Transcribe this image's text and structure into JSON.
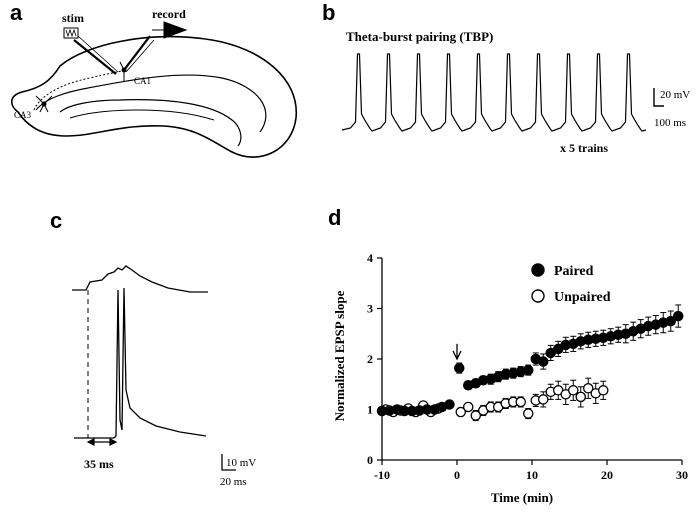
{
  "panel_a": {
    "label": "a",
    "stim_label": "stim",
    "record_label": "record",
    "ca1_label": "CA1",
    "ca3_label": "CA3"
  },
  "panel_b": {
    "label": "b",
    "title": "Theta-burst pairing (TBP)",
    "scale_v": "20 mV",
    "scale_t": "100 ms",
    "trains_note": "x 5 trains",
    "spike_count": 10
  },
  "panel_c": {
    "label": "c",
    "delay_label": "35 ms",
    "scale_v": "10 mV",
    "scale_t": "20 ms"
  },
  "panel_d": {
    "label": "d",
    "chart_data": {
      "type": "scatter",
      "xlabel": "Time (min)",
      "ylabel": "Normalized EPSP slope",
      "xlim": [
        -10,
        30
      ],
      "ylim": [
        0,
        4
      ],
      "xticks": [
        -10,
        0,
        10,
        20,
        30
      ],
      "yticks": [
        0,
        1,
        2,
        3,
        4
      ],
      "legend_position": "top-right",
      "annotation": "arrow at time 0",
      "series": [
        {
          "name": "Paired",
          "marker": "filled-circle",
          "x": [
            -10,
            -9,
            -8,
            -7,
            -6,
            -5,
            -4,
            -3,
            -2,
            -1,
            0.3,
            1.5,
            2.5,
            3.5,
            4.5,
            5.5,
            6.5,
            7.5,
            8.5,
            9.5,
            10.5,
            11.5,
            12.5,
            13.5,
            14.5,
            15.5,
            16.5,
            17.5,
            18.5,
            19.5,
            20.5,
            21.5,
            22.5,
            23.5,
            24.5,
            25.5,
            26.5,
            27.5,
            28.5,
            29.5
          ],
          "y": [
            0.97,
            0.98,
            1.0,
            0.97,
            0.97,
            0.98,
            1.0,
            1.0,
            1.05,
            1.1,
            1.82,
            1.48,
            1.52,
            1.58,
            1.6,
            1.65,
            1.7,
            1.72,
            1.75,
            1.78,
            2.0,
            1.95,
            2.12,
            2.2,
            2.28,
            2.3,
            2.35,
            2.38,
            2.4,
            2.42,
            2.45,
            2.48,
            2.5,
            2.55,
            2.6,
            2.65,
            2.68,
            2.72,
            2.75,
            2.85
          ],
          "err": [
            0.05,
            0.05,
            0.05,
            0.05,
            0.05,
            0.05,
            0.05,
            0.05,
            0.05,
            0.05,
            0.1,
            0.08,
            0.08,
            0.08,
            0.1,
            0.1,
            0.1,
            0.1,
            0.1,
            0.1,
            0.12,
            0.15,
            0.15,
            0.15,
            0.15,
            0.15,
            0.15,
            0.15,
            0.15,
            0.15,
            0.15,
            0.15,
            0.18,
            0.18,
            0.18,
            0.18,
            0.18,
            0.2,
            0.2,
            0.22
          ]
        },
        {
          "name": "Unpaired",
          "marker": "open-circle",
          "x": [
            -9.5,
            -8.5,
            -7.5,
            -6.5,
            -5.5,
            -4.5,
            -3.5,
            -2.5,
            0.5,
            1.5,
            2.5,
            3.5,
            4.5,
            5.5,
            6.5,
            7.5,
            8.5,
            9.5,
            10.5,
            11.5,
            12.5,
            13.5,
            14.5,
            15.5,
            16.5,
            17.5,
            18.5,
            19.5
          ],
          "y": [
            1.0,
            0.95,
            0.98,
            1.02,
            0.95,
            1.08,
            0.95,
            1.02,
            0.95,
            1.05,
            0.88,
            0.98,
            1.05,
            1.05,
            1.12,
            1.15,
            1.15,
            0.92,
            1.18,
            1.2,
            1.35,
            1.38,
            1.3,
            1.38,
            1.25,
            1.42,
            1.32,
            1.38
          ],
          "err": [
            0.05,
            0.05,
            0.05,
            0.05,
            0.05,
            0.05,
            0.05,
            0.05,
            0.08,
            0.08,
            0.1,
            0.1,
            0.1,
            0.1,
            0.1,
            0.1,
            0.1,
            0.1,
            0.12,
            0.15,
            0.15,
            0.18,
            0.2,
            0.2,
            0.2,
            0.2,
            0.2,
            0.18
          ]
        }
      ]
    }
  }
}
